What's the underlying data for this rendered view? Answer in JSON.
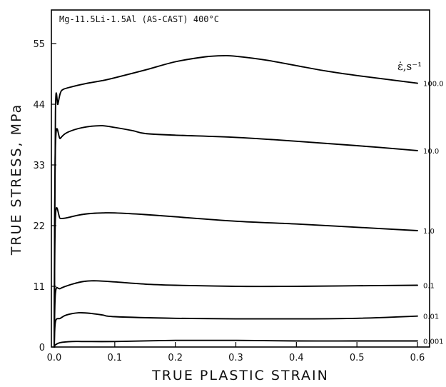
{
  "chart_data": {
    "type": "line",
    "title": "Mg-11.5Li-1.5Al (AS-CAST) 400°C",
    "xlabel": "TRUE PLASTIC STRAIN",
    "ylabel": "TRUE STRESS, MPa",
    "legend_title": "ε̇,s⁻¹",
    "xlim": [
      0,
      0.6
    ],
    "ylim": [
      0,
      57
    ],
    "x_ticks": [
      0.0,
      0.1,
      0.2,
      0.3,
      0.4,
      0.5,
      0.6
    ],
    "x_tick_labels": [
      "0.0",
      "0.1",
      "0.2",
      "0.3",
      "0.4",
      "0.5",
      "0.6"
    ],
    "y_ticks": [
      0,
      11,
      22,
      33,
      44,
      55
    ],
    "y_tick_labels": [
      "0",
      "11",
      "22",
      "33",
      "44",
      "55"
    ],
    "grid": false,
    "legend_placement": "right, inline labels at curve ends",
    "series": [
      {
        "name": "100.0",
        "x": [
          0,
          0.002,
          0.006,
          0.01,
          0.015,
          0.03,
          0.05,
          0.08,
          0.1,
          0.15,
          0.2,
          0.25,
          0.28,
          0.3,
          0.35,
          0.4,
          0.45,
          0.5,
          0.55,
          0.6
        ],
        "y": [
          0,
          42.5,
          44.0,
          46.0,
          46.7,
          47.2,
          47.7,
          48.3,
          48.8,
          50.2,
          51.7,
          52.6,
          52.8,
          52.7,
          52.0,
          51.0,
          50.0,
          49.2,
          48.5,
          47.8
        ]
      },
      {
        "name": "10.0",
        "x": [
          0,
          0.002,
          0.01,
          0.02,
          0.04,
          0.06,
          0.08,
          0.1,
          0.13,
          0.15,
          0.2,
          0.3,
          0.4,
          0.5,
          0.6
        ],
        "y": [
          0,
          36.5,
          37.8,
          38.8,
          39.6,
          40.0,
          40.1,
          39.8,
          39.2,
          38.7,
          38.4,
          38.0,
          37.3,
          36.5,
          35.6
        ]
      },
      {
        "name": "1.0",
        "x": [
          0,
          0.002,
          0.01,
          0.02,
          0.04,
          0.06,
          0.08,
          0.1,
          0.15,
          0.2,
          0.3,
          0.4,
          0.5,
          0.6
        ],
        "y": [
          0,
          23.6,
          23.3,
          23.4,
          23.9,
          24.2,
          24.3,
          24.3,
          24.0,
          23.6,
          22.8,
          22.3,
          21.7,
          21.1
        ]
      },
      {
        "name": "0.1",
        "x": [
          0,
          0.002,
          0.01,
          0.03,
          0.05,
          0.07,
          0.1,
          0.15,
          0.2,
          0.3,
          0.4,
          0.5,
          0.6
        ],
        "y": [
          0,
          9.8,
          10.6,
          11.4,
          11.9,
          12.0,
          11.8,
          11.4,
          11.2,
          11.0,
          11.0,
          11.1,
          11.2
        ]
      },
      {
        "name": "0.01",
        "x": [
          0,
          0.002,
          0.01,
          0.02,
          0.04,
          0.06,
          0.08,
          0.1,
          0.2,
          0.3,
          0.4,
          0.5,
          0.6
        ],
        "y": [
          0,
          4.6,
          5.2,
          5.8,
          6.2,
          6.1,
          5.8,
          5.5,
          5.2,
          5.1,
          5.1,
          5.2,
          5.6
        ]
      },
      {
        "name": "0.001",
        "x": [
          0,
          0.002,
          0.01,
          0.03,
          0.05,
          0.1,
          0.2,
          0.3,
          0.4,
          0.5,
          0.6
        ],
        "y": [
          0,
          0.4,
          0.8,
          1.0,
          1.0,
          1.0,
          1.2,
          1.2,
          1.1,
          1.1,
          1.1
        ]
      }
    ]
  }
}
